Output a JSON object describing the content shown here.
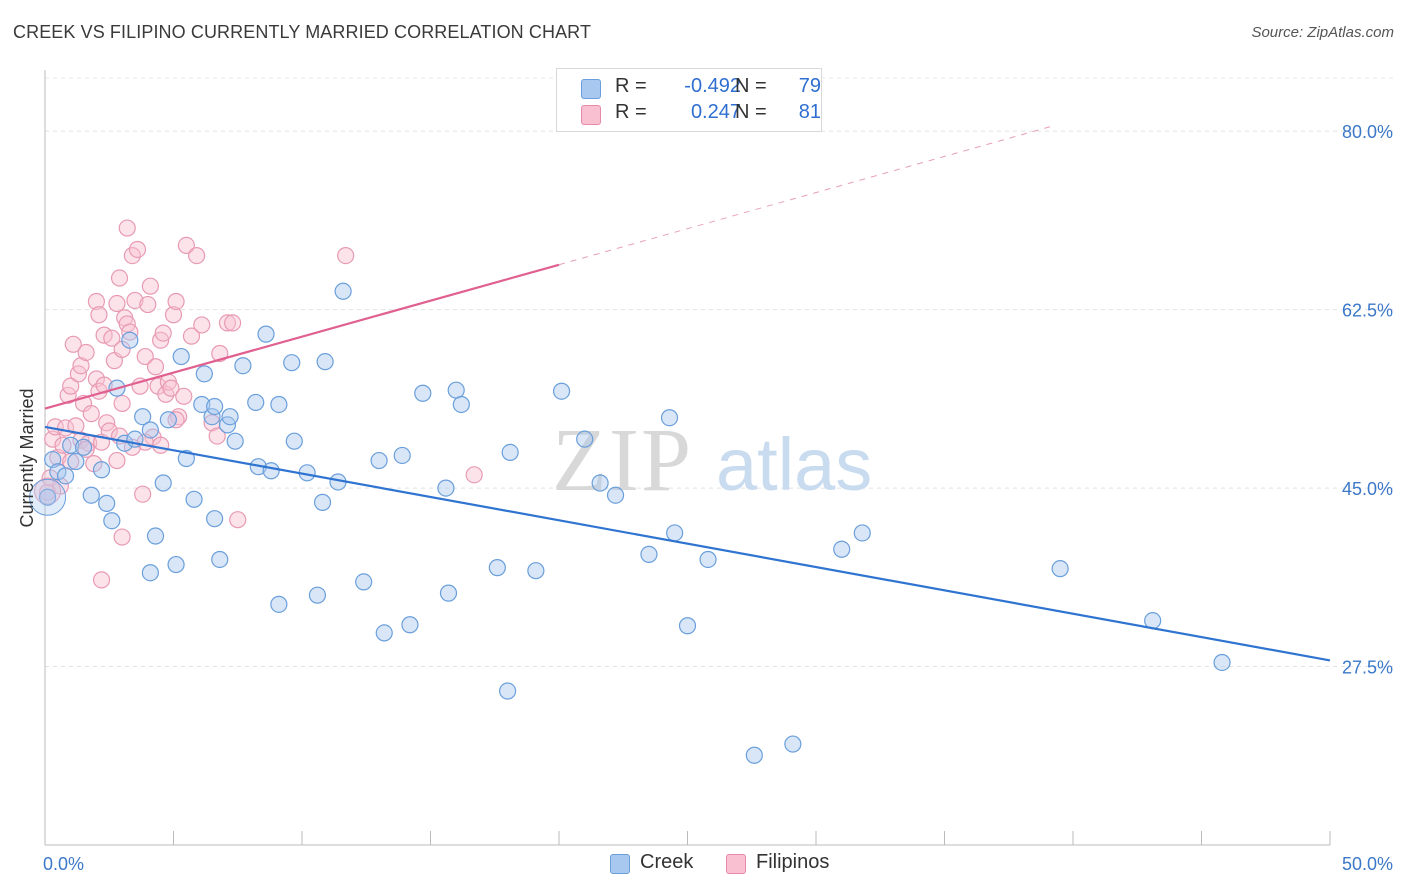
{
  "title": "CREEK VS FILIPINO CURRENTLY MARRIED CORRELATION CHART",
  "source": "Source: ZipAtlas.com",
  "watermark": {
    "zip": "ZIP",
    "atlas": "atlas"
  },
  "legend": {
    "rows": [
      {
        "r_label": "R =",
        "r_value": "-0.492",
        "n_label": "N =",
        "n_value": "79",
        "color": "#a8c8f0",
        "border": "#6a9fdb"
      },
      {
        "r_label": "R =",
        "r_value": "0.247",
        "n_label": "N =",
        "n_value": "81",
        "color": "#f8c0d0",
        "border": "#e58aa8"
      }
    ]
  },
  "bottom_legend": [
    {
      "label": "Creek",
      "color": "#a8c8f0",
      "border": "#6a9fdb"
    },
    {
      "label": "Filipinos",
      "color": "#f8c0d0",
      "border": "#e58aa8"
    }
  ],
  "chart_data": {
    "type": "scatter",
    "title": "CREEK VS FILIPINO CURRENTLY MARRIED CORRELATION CHART",
    "xlabel": "",
    "ylabel": "Currently Married",
    "xlim": [
      0,
      50
    ],
    "ylim": [
      10,
      86
    ],
    "x_tick_labels": [
      {
        "value": 0,
        "label": "0.0%"
      },
      {
        "value": 50,
        "label": "50.0%"
      }
    ],
    "y_tick_labels": [
      {
        "value": 80,
        "label": "80.0%"
      },
      {
        "value": 62.5,
        "label": "62.5%"
      },
      {
        "value": 45,
        "label": "45.0%"
      },
      {
        "value": 27.5,
        "label": "27.5%"
      }
    ],
    "grid": true,
    "legend_position": "top-center",
    "colors": {
      "creek": "#2f74d0",
      "filipinos": "#e06090",
      "creek_fill": "#a8c8f0",
      "filipinos_fill": "#f8c0d0"
    },
    "series": [
      {
        "name": "Creek",
        "trend": {
          "x": [
            0,
            50
          ],
          "y": [
            51.0,
            28.1
          ],
          "style": "solid"
        },
        "points": [
          [
            0.1,
            44.1
          ],
          [
            0.3,
            47.8
          ],
          [
            0.5,
            46.6
          ],
          [
            0.8,
            46.2
          ],
          [
            1.0,
            49.2
          ],
          [
            1.2,
            47.6
          ],
          [
            1.5,
            49.0
          ],
          [
            1.8,
            44.3
          ],
          [
            2.2,
            46.8
          ],
          [
            2.4,
            43.5
          ],
          [
            2.6,
            41.8
          ],
          [
            2.8,
            54.8
          ],
          [
            3.1,
            49.4
          ],
          [
            3.3,
            59.5
          ],
          [
            3.5,
            49.8
          ],
          [
            3.8,
            52.0
          ],
          [
            4.1,
            50.7
          ],
          [
            4.3,
            40.3
          ],
          [
            4.6,
            45.5
          ],
          [
            4.8,
            51.7
          ],
          [
            5.1,
            37.5
          ],
          [
            5.3,
            57.9
          ],
          [
            5.5,
            47.9
          ],
          [
            5.8,
            43.9
          ],
          [
            6.1,
            53.2
          ],
          [
            6.2,
            56.2
          ],
          [
            6.5,
            52.0
          ],
          [
            6.6,
            53.0
          ],
          [
            6.8,
            38.0
          ],
          [
            7.1,
            51.2
          ],
          [
            7.2,
            52.0
          ],
          [
            7.4,
            49.6
          ],
          [
            7.7,
            57.0
          ],
          [
            8.2,
            53.4
          ],
          [
            8.3,
            47.1
          ],
          [
            8.6,
            60.1
          ],
          [
            8.8,
            46.7
          ],
          [
            9.1,
            53.2
          ],
          [
            9.6,
            57.3
          ],
          [
            9.7,
            49.6
          ],
          [
            10.2,
            46.5
          ],
          [
            10.6,
            34.5
          ],
          [
            10.8,
            43.6
          ],
          [
            10.9,
            57.4
          ],
          [
            11.4,
            45.6
          ],
          [
            11.6,
            64.3
          ],
          [
            12.4,
            35.8
          ],
          [
            13.0,
            47.7
          ],
          [
            13.2,
            30.8
          ],
          [
            13.9,
            48.2
          ],
          [
            14.2,
            31.6
          ],
          [
            14.7,
            54.3
          ],
          [
            15.6,
            45.0
          ],
          [
            15.7,
            34.7
          ],
          [
            16.0,
            54.6
          ],
          [
            16.2,
            53.2
          ],
          [
            17.6,
            37.2
          ],
          [
            18.0,
            25.1
          ],
          [
            18.1,
            48.5
          ],
          [
            19.1,
            36.9
          ],
          [
            20.1,
            54.5
          ],
          [
            21.0,
            49.8
          ],
          [
            21.6,
            45.5
          ],
          [
            22.2,
            44.3
          ],
          [
            23.5,
            38.5
          ],
          [
            24.3,
            51.9
          ],
          [
            24.5,
            40.6
          ],
          [
            25.0,
            31.5
          ],
          [
            25.8,
            38.0
          ],
          [
            27.6,
            18.8
          ],
          [
            29.1,
            19.9
          ],
          [
            31.0,
            39.0
          ],
          [
            31.8,
            40.6
          ],
          [
            39.5,
            37.1
          ],
          [
            43.1,
            32.0
          ],
          [
            45.8,
            27.9
          ],
          [
            4.1,
            36.7
          ],
          [
            9.1,
            33.6
          ],
          [
            6.6,
            42.0
          ]
        ]
      },
      {
        "name": "Filipinos",
        "trend": {
          "x": [
            0,
            20
          ],
          "y": [
            52.8,
            66.9
          ],
          "ext_x": [
            20,
            39.2
          ],
          "ext_y": [
            66.9,
            80.5
          ],
          "style": "solid+dashed"
        },
        "points": [
          [
            0.1,
            44.6
          ],
          [
            0.2,
            46.0
          ],
          [
            0.3,
            49.8
          ],
          [
            0.4,
            51.0
          ],
          [
            0.5,
            48.0
          ],
          [
            0.6,
            45.2
          ],
          [
            0.7,
            49.2
          ],
          [
            0.8,
            50.9
          ],
          [
            0.9,
            54.1
          ],
          [
            1.0,
            55.0
          ],
          [
            1.0,
            47.6
          ],
          [
            1.1,
            59.1
          ],
          [
            1.2,
            51.1
          ],
          [
            1.3,
            56.2
          ],
          [
            1.4,
            49.7
          ],
          [
            1.4,
            57.0
          ],
          [
            1.5,
            53.3
          ],
          [
            1.6,
            58.3
          ],
          [
            1.7,
            49.4
          ],
          [
            1.8,
            52.3
          ],
          [
            1.9,
            47.4
          ],
          [
            2.0,
            63.3
          ],
          [
            2.0,
            55.7
          ],
          [
            2.1,
            54.5
          ],
          [
            2.1,
            62.0
          ],
          [
            2.2,
            49.5
          ],
          [
            2.3,
            60.0
          ],
          [
            2.3,
            55.1
          ],
          [
            2.4,
            51.4
          ],
          [
            2.5,
            50.6
          ],
          [
            2.6,
            59.7
          ],
          [
            2.7,
            57.5
          ],
          [
            2.8,
            47.7
          ],
          [
            2.8,
            63.1
          ],
          [
            2.9,
            65.6
          ],
          [
            3.0,
            53.3
          ],
          [
            3.0,
            58.6
          ],
          [
            3.1,
            61.7
          ],
          [
            3.2,
            61.1
          ],
          [
            3.2,
            70.5
          ],
          [
            3.3,
            60.3
          ],
          [
            3.4,
            67.8
          ],
          [
            3.5,
            63.4
          ],
          [
            3.6,
            68.4
          ],
          [
            3.7,
            55.0
          ],
          [
            3.8,
            44.4
          ],
          [
            3.9,
            57.9
          ],
          [
            4.0,
            63.0
          ],
          [
            4.1,
            64.8
          ],
          [
            4.2,
            50.0
          ],
          [
            4.3,
            56.9
          ],
          [
            4.4,
            55.0
          ],
          [
            4.5,
            59.5
          ],
          [
            4.6,
            60.2
          ],
          [
            4.7,
            54.2
          ],
          [
            4.8,
            55.4
          ],
          [
            4.9,
            54.8
          ],
          [
            5.0,
            62.0
          ],
          [
            5.1,
            63.3
          ],
          [
            5.2,
            52.0
          ],
          [
            5.4,
            54.0
          ],
          [
            5.5,
            68.8
          ],
          [
            5.7,
            59.9
          ],
          [
            5.9,
            67.8
          ],
          [
            6.1,
            61.0
          ],
          [
            6.5,
            51.4
          ],
          [
            6.8,
            58.2
          ],
          [
            7.1,
            61.2
          ],
          [
            7.3,
            61.2
          ],
          [
            7.5,
            41.9
          ],
          [
            11.7,
            67.8
          ],
          [
            16.7,
            46.3
          ],
          [
            2.2,
            36.0
          ],
          [
            3.0,
            40.2
          ],
          [
            3.4,
            49.0
          ],
          [
            3.9,
            49.5
          ],
          [
            4.5,
            49.2
          ],
          [
            5.1,
            51.7
          ],
          [
            1.6,
            48.8
          ],
          [
            2.9,
            50.1
          ],
          [
            6.7,
            50.1
          ]
        ]
      }
    ]
  }
}
